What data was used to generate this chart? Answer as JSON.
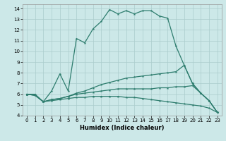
{
  "xlabel": "Humidex (Indice chaleur)",
  "bg_color": "#cce8e8",
  "grid_color": "#aacccc",
  "line_color": "#2e7d6e",
  "xlim": [
    -0.5,
    23.5
  ],
  "ylim": [
    4,
    14.4
  ],
  "xticks": [
    0,
    1,
    2,
    3,
    4,
    5,
    6,
    7,
    8,
    9,
    10,
    11,
    12,
    13,
    14,
    15,
    16,
    17,
    18,
    19,
    20,
    21,
    22,
    23
  ],
  "yticks": [
    4,
    5,
    6,
    7,
    8,
    9,
    10,
    11,
    12,
    13,
    14
  ],
  "lines": [
    {
      "x": [
        0,
        1,
        2,
        3,
        4,
        5,
        6,
        7,
        8,
        9,
        10,
        11,
        12,
        13,
        14,
        15,
        16,
        17,
        18,
        19,
        20,
        21,
        22,
        23
      ],
      "y": [
        6,
        6,
        5.3,
        6.3,
        7.9,
        6.3,
        11.2,
        10.8,
        12.1,
        12.8,
        13.9,
        13.5,
        13.8,
        13.5,
        13.8,
        13.8,
        13.3,
        13.1,
        10.5,
        8.7,
        7.0,
        6.1,
        5.4,
        4.3
      ]
    },
    {
      "x": [
        0,
        1,
        2,
        3,
        4,
        5,
        6,
        7,
        8,
        9,
        10,
        11,
        12,
        13,
        14,
        15,
        16,
        17,
        18,
        19,
        20,
        21,
        22,
        23
      ],
      "y": [
        6.0,
        5.9,
        5.3,
        5.5,
        5.6,
        5.8,
        6.1,
        6.3,
        6.6,
        6.9,
        7.1,
        7.3,
        7.5,
        7.6,
        7.7,
        7.8,
        7.9,
        8.0,
        8.1,
        8.7,
        7.0,
        6.1,
        5.4,
        4.3
      ]
    },
    {
      "x": [
        0,
        1,
        2,
        3,
        4,
        5,
        6,
        7,
        8,
        9,
        10,
        11,
        12,
        13,
        14,
        15,
        16,
        17,
        18,
        19,
        20,
        21,
        22,
        23
      ],
      "y": [
        6.0,
        5.9,
        5.3,
        5.5,
        5.6,
        5.8,
        6.0,
        6.1,
        6.2,
        6.3,
        6.4,
        6.5,
        6.5,
        6.5,
        6.5,
        6.5,
        6.6,
        6.6,
        6.7,
        6.7,
        6.8,
        6.1,
        5.4,
        4.3
      ]
    },
    {
      "x": [
        0,
        1,
        2,
        3,
        4,
        5,
        6,
        7,
        8,
        9,
        10,
        11,
        12,
        13,
        14,
        15,
        16,
        17,
        18,
        19,
        20,
        21,
        22,
        23
      ],
      "y": [
        6.0,
        5.9,
        5.3,
        5.4,
        5.5,
        5.6,
        5.7,
        5.7,
        5.8,
        5.8,
        5.8,
        5.8,
        5.7,
        5.7,
        5.6,
        5.5,
        5.4,
        5.3,
        5.2,
        5.1,
        5.0,
        4.9,
        4.7,
        4.3
      ]
    }
  ]
}
